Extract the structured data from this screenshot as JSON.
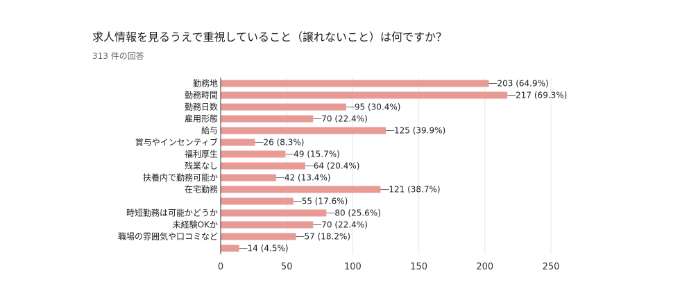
{
  "title": "求人情報を見るうえで重視していること（譲れないこと）は何ですか？",
  "response_count": "313 件の回答",
  "colors": {
    "bar": "#e89a95",
    "grid": "#e6e6e6",
    "axis": "#333333",
    "leader": "#666666"
  },
  "chart_data": {
    "type": "bar",
    "orientation": "horizontal",
    "title": "求人情報を見るうえで重視していること（譲れないこと）は何ですか？",
    "subtitle": "313 件の回答",
    "categories": [
      "勤務地",
      "勤務時間",
      "勤務日数",
      "雇用形態",
      "給与",
      "賞与やインセンティブ",
      "福利厚生",
      "残業なし",
      "扶養内で勤務可能か",
      "在宅勤務",
      "",
      "時短勤務は可能かどうか",
      "未経験OKか",
      "職場の雰囲気や口コミなど",
      ""
    ],
    "values": [
      203,
      217,
      95,
      70,
      125,
      26,
      49,
      64,
      42,
      121,
      55,
      80,
      70,
      57,
      14
    ],
    "value_labels": [
      "203 (64.9%)",
      "217 (69.3%)",
      "95 (30.4%)",
      "70 (22.4%)",
      "125 (39.9%)",
      "26 (8.3%)",
      "49 (15.7%)",
      "64 (20.4%)",
      "42 (13.4%)",
      "121 (38.7%)",
      "55 (17.6%)",
      "80 (25.6%)",
      "70 (22.4%)",
      "57 (18.2%)",
      "14 (4.5%)"
    ],
    "xlim": [
      0,
      250
    ],
    "xticks": [
      0,
      50,
      100,
      150,
      200,
      250
    ],
    "grid": true,
    "legend": "none"
  }
}
